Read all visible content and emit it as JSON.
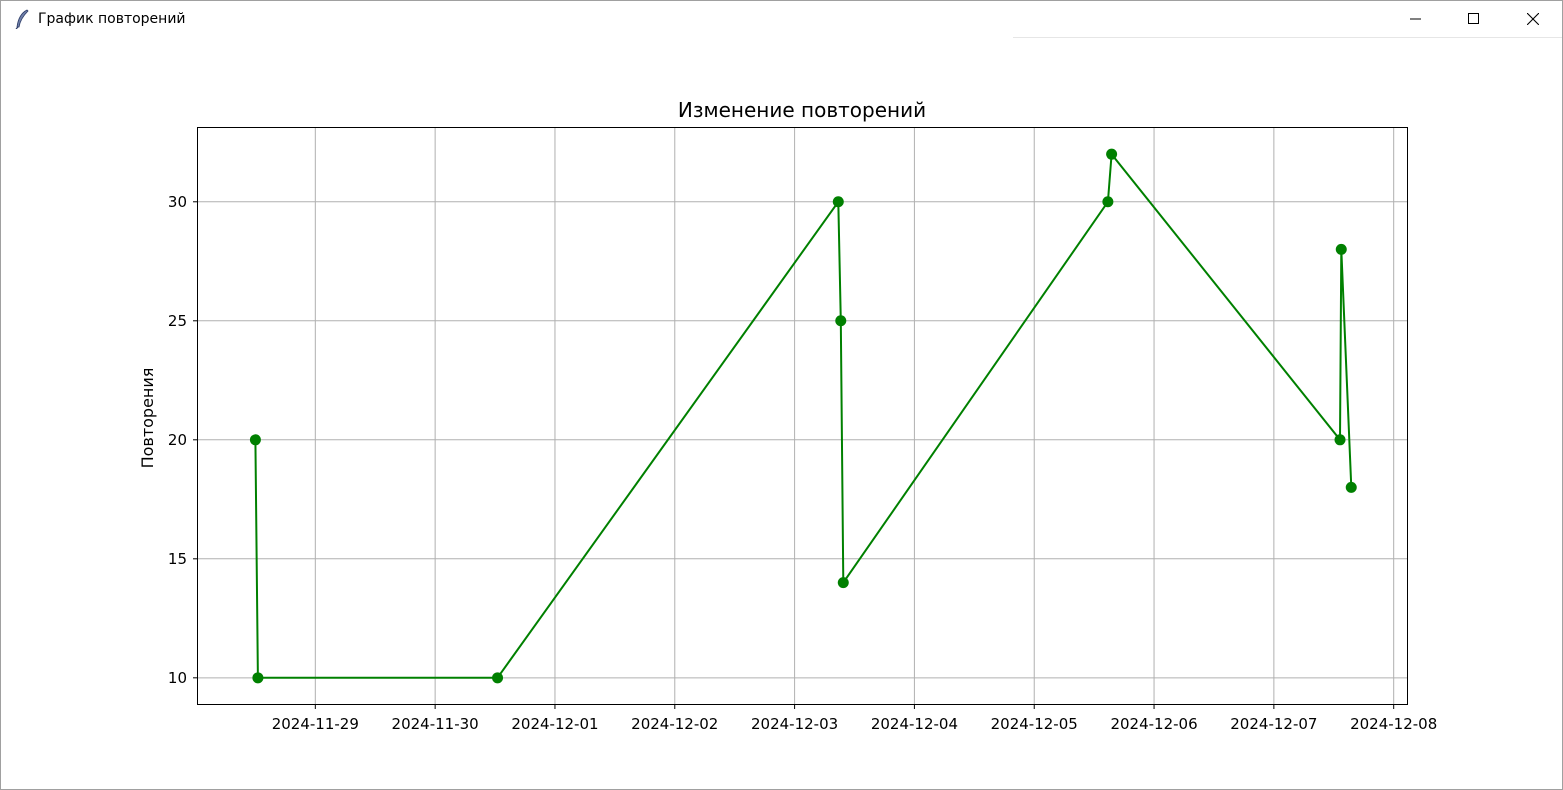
{
  "window": {
    "title": "График повторений",
    "app_icon": "feather-icon",
    "minimize_icon": "minimize-icon",
    "maximize_icon": "maximize-icon",
    "close_icon": "close-icon"
  },
  "chart_data": {
    "type": "line",
    "title": "Изменение повторений",
    "xlabel": "",
    "ylabel": "Повторения",
    "x_type": "datetime",
    "x_tick_labels": [
      "2024-11-29",
      "2024-11-30",
      "2024-12-01",
      "2024-12-02",
      "2024-12-03",
      "2024-12-04",
      "2024-12-05",
      "2024-12-06",
      "2024-12-07",
      "2024-12-08"
    ],
    "y_ticks": [
      10,
      15,
      20,
      25,
      30
    ],
    "xlim": [
      "2024-11-28 00:30",
      "2024-12-08 02:40"
    ],
    "ylim": [
      8.9,
      33.1
    ],
    "grid": true,
    "marker": "circle",
    "color": "#008000",
    "series": [
      {
        "points": [
          {
            "x": "2024-11-28 12:00",
            "y": 20
          },
          {
            "x": "2024-11-28 12:30",
            "y": 10
          },
          {
            "x": "2024-11-30 12:30",
            "y": 10
          },
          {
            "x": "2024-12-03 08:45",
            "y": 30
          },
          {
            "x": "2024-12-03 09:15",
            "y": 25
          },
          {
            "x": "2024-12-03 09:45",
            "y": 14
          },
          {
            "x": "2024-12-05 14:45",
            "y": 30
          },
          {
            "x": "2024-12-05 15:30",
            "y": 32
          },
          {
            "x": "2024-12-07 13:15",
            "y": 20
          },
          {
            "x": "2024-12-07 13:30",
            "y": 28
          },
          {
            "x": "2024-12-07 15:30",
            "y": 18
          }
        ]
      }
    ]
  }
}
